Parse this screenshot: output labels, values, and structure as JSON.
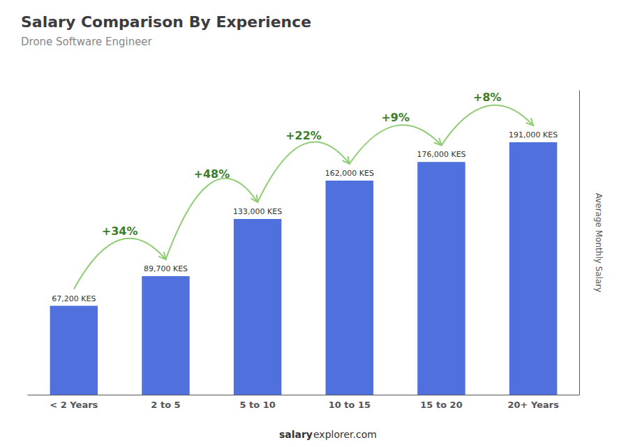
{
  "chart_data": {
    "type": "bar",
    "title": "Salary Comparison By Experience",
    "subtitle": "Drone Software Engineer",
    "categories": [
      "< 2 Years",
      "2 to 5",
      "5 to 10",
      "10 to 15",
      "15 to 20",
      "20+ Years"
    ],
    "values": [
      67200,
      89700,
      133000,
      162000,
      176000,
      191000
    ],
    "value_labels": [
      "67,200 KES",
      "89,700 KES",
      "133,000 KES",
      "162,000 KES",
      "176,000 KES",
      "191,000 KES"
    ],
    "data_labels": true,
    "ylabel": "Average Monthly Salary",
    "ylim": [
      0,
      230000
    ],
    "grid": false,
    "tick_labels": "x",
    "annotations": [
      {
        "text": "+34%",
        "from": "< 2 Years",
        "to": "2 to 5"
      },
      {
        "text": "+48%",
        "from": "2 to 5",
        "to": "5 to 10"
      },
      {
        "text": "+22%",
        "from": "5 to 10",
        "to": "10 to 15"
      },
      {
        "text": "+9%",
        "from": "10 to 15",
        "to": "15 to 20"
      },
      {
        "text": "+8%",
        "from": "15 to 20",
        "to": "20+ Years"
      }
    ],
    "footer": [
      "salary",
      "explorer.com"
    ]
  }
}
